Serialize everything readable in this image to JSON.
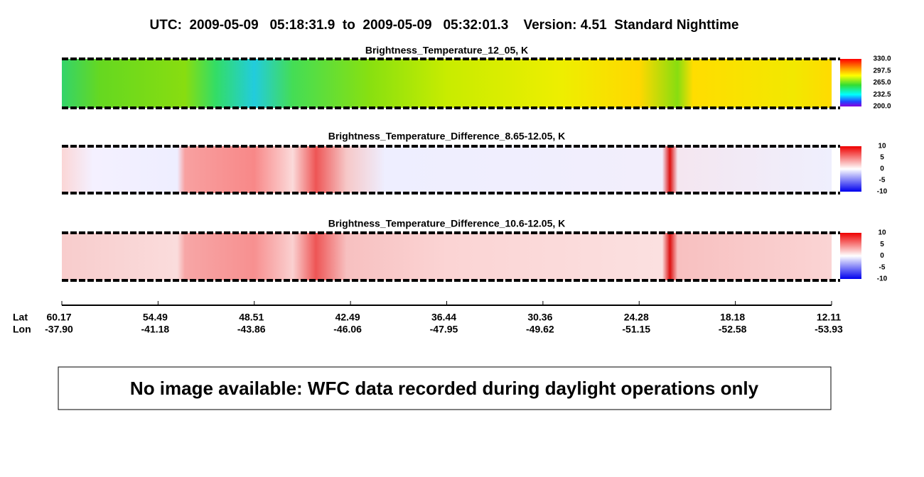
{
  "header": {
    "title": "UTC:  2009-05-09   05:18:31.9  to  2009-05-09   05:32:01.3    Version: 4.51  Standard Nighttime"
  },
  "panels": [
    {
      "title": "Brightness_Temperature_12_05, K",
      "colorbar_ticks": [
        "330.0",
        "297.5",
        "265.0",
        "232.5",
        "200.0"
      ]
    },
    {
      "title": "Brightness_Temperature_Difference_8.65-12.05, K",
      "colorbar_ticks": [
        "10",
        "5",
        "0",
        "-5",
        "-10"
      ]
    },
    {
      "title": "Brightness_Temperature_Difference_10.6-12.05, K",
      "colorbar_ticks": [
        "10",
        "5",
        "0",
        "-5",
        "-10"
      ]
    }
  ],
  "axis": {
    "lat_label": "Lat",
    "lon_label": "Lon",
    "lat": [
      "60.17",
      "54.49",
      "48.51",
      "42.49",
      "36.44",
      "30.36",
      "24.28",
      "18.18",
      "12.11"
    ],
    "lon": [
      "-37.90",
      "-41.18",
      "-43.86",
      "-46.06",
      "-47.95",
      "-49.62",
      "-51.15",
      "-52.58",
      "-53.93"
    ]
  },
  "message": "No image available: WFC data recorded during daylight operations only"
}
